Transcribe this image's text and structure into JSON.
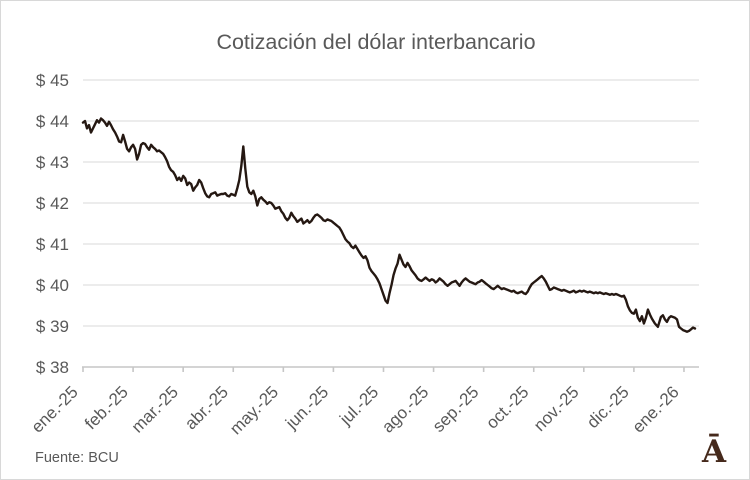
{
  "title": "Cotización del dólar interbancario",
  "source": {
    "label": "Fuente: BCU"
  },
  "logo": {
    "glyph": "Ā"
  },
  "colors": {
    "line": "#251812",
    "grid": "#d9d9d9",
    "axis": "#c6c6c6",
    "text": "#595959",
    "logo": "#45291b"
  },
  "chart_data": {
    "type": "line",
    "title": "Cotización del dólar interbancario",
    "xlabel": "",
    "ylabel": "",
    "grid": "horizontal",
    "legend": "none",
    "y_axis": {
      "min": 38,
      "max": 45,
      "tick_values": [
        45,
        44,
        43,
        42,
        41,
        40,
        39,
        38
      ],
      "tick_labels": [
        "$ 45",
        "$ 44",
        "$ 43",
        "$ 42",
        "$ 41",
        "$ 40",
        "$ 39",
        "$ 38"
      ]
    },
    "x_axis": {
      "unit": "month",
      "range_months": [
        0,
        12.3
      ],
      "tick_months": [
        0,
        1,
        2,
        3,
        4,
        5,
        6,
        7,
        8,
        9,
        10,
        11,
        12
      ],
      "tick_labels": [
        "ene.-25",
        "feb.-25",
        "mar.-25",
        "abr.-25",
        "may.-25",
        "jun.-25",
        "jul.-25",
        "ago.-25",
        "sep.-25",
        "oct.-25",
        "nov.-25",
        "dic.-25",
        "ene.-26"
      ]
    },
    "series": [
      {
        "name": "dólar interbancario",
        "points": [
          [
            0.0,
            43.96
          ],
          [
            0.04,
            44.0
          ],
          [
            0.08,
            43.82
          ],
          [
            0.12,
            43.9
          ],
          [
            0.16,
            43.72
          ],
          [
            0.2,
            43.82
          ],
          [
            0.24,
            43.92
          ],
          [
            0.28,
            44.02
          ],
          [
            0.32,
            43.96
          ],
          [
            0.36,
            44.06
          ],
          [
            0.4,
            44.02
          ],
          [
            0.44,
            43.96
          ],
          [
            0.48,
            43.88
          ],
          [
            0.52,
            43.98
          ],
          [
            0.56,
            43.9
          ],
          [
            0.6,
            43.8
          ],
          [
            0.64,
            43.72
          ],
          [
            0.68,
            43.62
          ],
          [
            0.72,
            43.5
          ],
          [
            0.76,
            43.48
          ],
          [
            0.8,
            43.66
          ],
          [
            0.84,
            43.5
          ],
          [
            0.88,
            43.32
          ],
          [
            0.92,
            43.26
          ],
          [
            0.96,
            43.36
          ],
          [
            1.0,
            43.42
          ],
          [
            1.04,
            43.32
          ],
          [
            1.08,
            43.06
          ],
          [
            1.12,
            43.2
          ],
          [
            1.16,
            43.42
          ],
          [
            1.2,
            43.46
          ],
          [
            1.24,
            43.44
          ],
          [
            1.28,
            43.36
          ],
          [
            1.32,
            43.3
          ],
          [
            1.36,
            43.42
          ],
          [
            1.4,
            43.36
          ],
          [
            1.44,
            43.32
          ],
          [
            1.48,
            43.26
          ],
          [
            1.52,
            43.28
          ],
          [
            1.56,
            43.24
          ],
          [
            1.6,
            43.2
          ],
          [
            1.64,
            43.12
          ],
          [
            1.68,
            43.02
          ],
          [
            1.72,
            42.88
          ],
          [
            1.76,
            42.8
          ],
          [
            1.8,
            42.76
          ],
          [
            1.84,
            42.68
          ],
          [
            1.88,
            42.56
          ],
          [
            1.92,
            42.62
          ],
          [
            1.96,
            42.54
          ],
          [
            2.0,
            42.66
          ],
          [
            2.04,
            42.6
          ],
          [
            2.08,
            42.44
          ],
          [
            2.12,
            42.5
          ],
          [
            2.16,
            42.46
          ],
          [
            2.2,
            42.3
          ],
          [
            2.24,
            42.38
          ],
          [
            2.28,
            42.44
          ],
          [
            2.32,
            42.56
          ],
          [
            2.36,
            42.5
          ],
          [
            2.4,
            42.36
          ],
          [
            2.44,
            42.24
          ],
          [
            2.48,
            42.16
          ],
          [
            2.52,
            42.14
          ],
          [
            2.56,
            42.22
          ],
          [
            2.6,
            42.24
          ],
          [
            2.64,
            42.26
          ],
          [
            2.68,
            42.18
          ],
          [
            2.72,
            42.2
          ],
          [
            2.76,
            42.22
          ],
          [
            2.8,
            42.22
          ],
          [
            2.84,
            42.24
          ],
          [
            2.88,
            42.18
          ],
          [
            2.92,
            42.16
          ],
          [
            2.96,
            42.22
          ],
          [
            3.0,
            42.2
          ],
          [
            3.04,
            42.18
          ],
          [
            3.08,
            42.36
          ],
          [
            3.12,
            42.56
          ],
          [
            3.16,
            42.9
          ],
          [
            3.2,
            43.38
          ],
          [
            3.24,
            42.84
          ],
          [
            3.28,
            42.4
          ],
          [
            3.32,
            42.26
          ],
          [
            3.36,
            42.22
          ],
          [
            3.4,
            42.3
          ],
          [
            3.44,
            42.16
          ],
          [
            3.48,
            41.94
          ],
          [
            3.52,
            42.1
          ],
          [
            3.56,
            42.14
          ],
          [
            3.6,
            42.08
          ],
          [
            3.64,
            42.04
          ],
          [
            3.68,
            41.98
          ],
          [
            3.72,
            42.02
          ],
          [
            3.76,
            42.0
          ],
          [
            3.8,
            41.94
          ],
          [
            3.84,
            41.86
          ],
          [
            3.88,
            41.88
          ],
          [
            3.92,
            41.9
          ],
          [
            3.96,
            41.8
          ],
          [
            4.0,
            41.74
          ],
          [
            4.04,
            41.64
          ],
          [
            4.08,
            41.58
          ],
          [
            4.12,
            41.64
          ],
          [
            4.16,
            41.76
          ],
          [
            4.2,
            41.68
          ],
          [
            4.24,
            41.62
          ],
          [
            4.28,
            41.54
          ],
          [
            4.32,
            41.58
          ],
          [
            4.36,
            41.62
          ],
          [
            4.4,
            41.5
          ],
          [
            4.44,
            41.54
          ],
          [
            4.48,
            41.58
          ],
          [
            4.52,
            41.52
          ],
          [
            4.56,
            41.56
          ],
          [
            4.6,
            41.64
          ],
          [
            4.64,
            41.7
          ],
          [
            4.68,
            41.72
          ],
          [
            4.72,
            41.68
          ],
          [
            4.76,
            41.64
          ],
          [
            4.8,
            41.58
          ],
          [
            4.84,
            41.56
          ],
          [
            4.88,
            41.6
          ],
          [
            4.92,
            41.58
          ],
          [
            4.96,
            41.56
          ],
          [
            5.0,
            41.52
          ],
          [
            5.04,
            41.48
          ],
          [
            5.08,
            41.44
          ],
          [
            5.12,
            41.4
          ],
          [
            5.16,
            41.32
          ],
          [
            5.2,
            41.22
          ],
          [
            5.24,
            41.12
          ],
          [
            5.28,
            41.06
          ],
          [
            5.32,
            41.02
          ],
          [
            5.36,
            40.94
          ],
          [
            5.4,
            40.9
          ],
          [
            5.44,
            40.96
          ],
          [
            5.48,
            40.88
          ],
          [
            5.52,
            40.8
          ],
          [
            5.56,
            40.72
          ],
          [
            5.6,
            40.66
          ],
          [
            5.64,
            40.7
          ],
          [
            5.68,
            40.6
          ],
          [
            5.72,
            40.42
          ],
          [
            5.76,
            40.34
          ],
          [
            5.8,
            40.28
          ],
          [
            5.84,
            40.22
          ],
          [
            5.88,
            40.14
          ],
          [
            5.92,
            40.04
          ],
          [
            5.96,
            39.9
          ],
          [
            6.0,
            39.76
          ],
          [
            6.04,
            39.62
          ],
          [
            6.08,
            39.56
          ],
          [
            6.12,
            39.8
          ],
          [
            6.16,
            40.0
          ],
          [
            6.2,
            40.24
          ],
          [
            6.24,
            40.4
          ],
          [
            6.28,
            40.52
          ],
          [
            6.32,
            40.74
          ],
          [
            6.36,
            40.62
          ],
          [
            6.4,
            40.5
          ],
          [
            6.44,
            40.44
          ],
          [
            6.48,
            40.54
          ],
          [
            6.52,
            40.46
          ],
          [
            6.56,
            40.36
          ],
          [
            6.6,
            40.3
          ],
          [
            6.64,
            40.24
          ],
          [
            6.68,
            40.16
          ],
          [
            6.72,
            40.12
          ],
          [
            6.76,
            40.1
          ],
          [
            6.8,
            40.14
          ],
          [
            6.84,
            40.18
          ],
          [
            6.88,
            40.14
          ],
          [
            6.92,
            40.1
          ],
          [
            6.96,
            40.14
          ],
          [
            7.0,
            40.12
          ],
          [
            7.04,
            40.06
          ],
          [
            7.08,
            40.1
          ],
          [
            7.12,
            40.16
          ],
          [
            7.16,
            40.12
          ],
          [
            7.2,
            40.08
          ],
          [
            7.24,
            40.02
          ],
          [
            7.28,
            39.98
          ],
          [
            7.32,
            40.02
          ],
          [
            7.36,
            40.06
          ],
          [
            7.4,
            40.08
          ],
          [
            7.44,
            40.1
          ],
          [
            7.48,
            40.04
          ],
          [
            7.52,
            39.98
          ],
          [
            7.56,
            40.06
          ],
          [
            7.6,
            40.12
          ],
          [
            7.64,
            40.16
          ],
          [
            7.68,
            40.12
          ],
          [
            7.72,
            40.08
          ],
          [
            7.76,
            40.06
          ],
          [
            7.8,
            40.04
          ],
          [
            7.84,
            40.02
          ],
          [
            7.88,
            40.06
          ],
          [
            7.92,
            40.08
          ],
          [
            7.96,
            40.12
          ],
          [
            8.0,
            40.08
          ],
          [
            8.04,
            40.04
          ],
          [
            8.08,
            40.0
          ],
          [
            8.12,
            39.96
          ],
          [
            8.16,
            39.92
          ],
          [
            8.2,
            39.9
          ],
          [
            8.24,
            39.94
          ],
          [
            8.28,
            39.98
          ],
          [
            8.32,
            39.94
          ],
          [
            8.36,
            39.9
          ],
          [
            8.4,
            39.92
          ],
          [
            8.44,
            39.9
          ],
          [
            8.48,
            39.88
          ],
          [
            8.52,
            39.86
          ],
          [
            8.56,
            39.84
          ],
          [
            8.6,
            39.86
          ],
          [
            8.64,
            39.82
          ],
          [
            8.68,
            39.8
          ],
          [
            8.72,
            39.82
          ],
          [
            8.76,
            39.84
          ],
          [
            8.8,
            39.8
          ],
          [
            8.84,
            39.78
          ],
          [
            8.88,
            39.84
          ],
          [
            8.92,
            39.94
          ],
          [
            8.96,
            40.02
          ],
          [
            9.0,
            40.06
          ],
          [
            9.04,
            40.1
          ],
          [
            9.08,
            40.14
          ],
          [
            9.12,
            40.18
          ],
          [
            9.16,
            40.22
          ],
          [
            9.2,
            40.16
          ],
          [
            9.24,
            40.08
          ],
          [
            9.28,
            39.98
          ],
          [
            9.32,
            39.88
          ],
          [
            9.36,
            39.9
          ],
          [
            9.4,
            39.94
          ],
          [
            9.44,
            39.92
          ],
          [
            9.48,
            39.9
          ],
          [
            9.52,
            39.88
          ],
          [
            9.56,
            39.86
          ],
          [
            9.6,
            39.88
          ],
          [
            9.64,
            39.86
          ],
          [
            9.68,
            39.84
          ],
          [
            9.72,
            39.82
          ],
          [
            9.76,
            39.84
          ],
          [
            9.8,
            39.86
          ],
          [
            9.84,
            39.82
          ],
          [
            9.88,
            39.84
          ],
          [
            9.92,
            39.86
          ],
          [
            9.96,
            39.84
          ],
          [
            10.0,
            39.86
          ],
          [
            10.04,
            39.84
          ],
          [
            10.08,
            39.82
          ],
          [
            10.12,
            39.84
          ],
          [
            10.16,
            39.82
          ],
          [
            10.2,
            39.8
          ],
          [
            10.24,
            39.82
          ],
          [
            10.28,
            39.8
          ],
          [
            10.32,
            39.82
          ],
          [
            10.36,
            39.8
          ],
          [
            10.4,
            39.78
          ],
          [
            10.44,
            39.8
          ],
          [
            10.48,
            39.78
          ],
          [
            10.52,
            39.76
          ],
          [
            10.56,
            39.78
          ],
          [
            10.6,
            39.76
          ],
          [
            10.64,
            39.78
          ],
          [
            10.68,
            39.76
          ],
          [
            10.72,
            39.74
          ],
          [
            10.76,
            39.72
          ],
          [
            10.8,
            39.74
          ],
          [
            10.84,
            39.64
          ],
          [
            10.88,
            39.48
          ],
          [
            10.92,
            39.38
          ],
          [
            10.96,
            39.32
          ],
          [
            11.0,
            39.3
          ],
          [
            11.04,
            39.4
          ],
          [
            11.08,
            39.2
          ],
          [
            11.12,
            39.12
          ],
          [
            11.16,
            39.24
          ],
          [
            11.2,
            39.06
          ],
          [
            11.24,
            39.2
          ],
          [
            11.28,
            39.4
          ],
          [
            11.32,
            39.28
          ],
          [
            11.36,
            39.18
          ],
          [
            11.42,
            39.06
          ],
          [
            11.48,
            38.98
          ],
          [
            11.54,
            39.22
          ],
          [
            11.58,
            39.26
          ],
          [
            11.62,
            39.16
          ],
          [
            11.66,
            39.1
          ],
          [
            11.7,
            39.2
          ],
          [
            11.74,
            39.24
          ],
          [
            11.78,
            39.22
          ],
          [
            11.82,
            39.2
          ],
          [
            11.86,
            39.16
          ],
          [
            11.9,
            38.98
          ],
          [
            11.94,
            38.94
          ],
          [
            11.98,
            38.9
          ],
          [
            12.02,
            38.88
          ],
          [
            12.06,
            38.86
          ],
          [
            12.1,
            38.88
          ],
          [
            12.14,
            38.92
          ],
          [
            12.18,
            38.96
          ],
          [
            12.22,
            38.94
          ]
        ]
      }
    ]
  }
}
